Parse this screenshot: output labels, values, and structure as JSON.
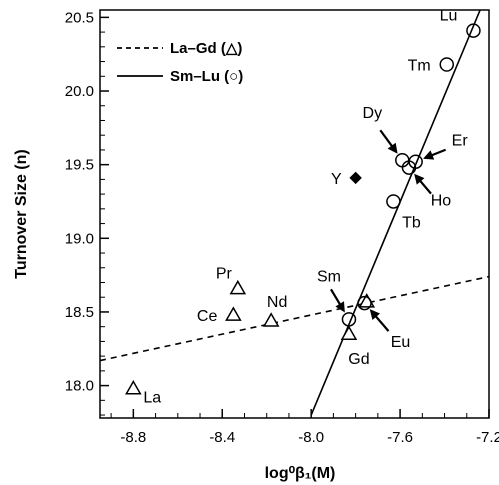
{
  "chart_data": {
    "type": "scatter",
    "xlabel": "log⁰β₁(M)",
    "ylabel": "Turnover Size (n)",
    "xlim": [
      -8.95,
      -7.2
    ],
    "ylim": [
      17.78,
      20.55
    ],
    "xticks": [
      -8.8,
      -8.4,
      -8.0,
      -7.6,
      -7.2
    ],
    "xtick_labels": [
      "-8.8",
      "-8.4",
      "-8.0",
      "-7.6",
      "-7.2"
    ],
    "yticks": [
      18.0,
      18.5,
      19.0,
      19.5,
      20.0,
      20.5
    ],
    "ytick_labels": [
      "18.0",
      "18.5",
      "19.0",
      "19.5",
      "20.0",
      "20.5"
    ],
    "grid": false,
    "legend_position": "top-left",
    "legend": [
      {
        "label": "La–Gd (△)",
        "style": "dashed"
      },
      {
        "label": "Sm–Lu (○)",
        "style": "solid"
      }
    ],
    "series": [
      {
        "marker": "triangle",
        "points": [
          {
            "x": -8.8,
            "y": 17.98,
            "label": "La"
          },
          {
            "x": -8.35,
            "y": 18.48,
            "label": "Ce"
          },
          {
            "x": -8.33,
            "y": 18.66,
            "label": "Pr"
          },
          {
            "x": -8.18,
            "y": 18.44,
            "label": "Nd"
          },
          {
            "x": -7.83,
            "y": 18.35,
            "label": "Gd"
          },
          {
            "x": -7.75,
            "y": 18.57,
            "label": ""
          }
        ]
      },
      {
        "marker": "circle",
        "points": [
          {
            "x": -7.83,
            "y": 18.45,
            "label": "Sm"
          },
          {
            "x": -7.76,
            "y": 18.56,
            "label": "Eu"
          },
          {
            "x": -7.63,
            "y": 19.25,
            "label": "Tb"
          },
          {
            "x": -7.59,
            "y": 19.53,
            "label": "Dy"
          },
          {
            "x": -7.56,
            "y": 19.48,
            "label": "Ho"
          },
          {
            "x": -7.53,
            "y": 19.52,
            "label": "Er"
          },
          {
            "x": -7.39,
            "y": 20.18,
            "label": "Tm"
          },
          {
            "x": -7.27,
            "y": 20.41,
            "label": "Lu"
          }
        ]
      },
      {
        "marker": "diamond",
        "points": [
          {
            "x": -7.8,
            "y": 19.41,
            "label": "Y"
          }
        ]
      }
    ],
    "fits": [
      {
        "style": "dashed",
        "x": [
          -8.95,
          -7.2
        ],
        "y": [
          18.17,
          18.74
        ]
      },
      {
        "style": "solid",
        "x": [
          -8.0,
          -7.24
        ],
        "y": [
          17.8,
          20.55
        ]
      }
    ],
    "annotations": [
      {
        "text": "Sm",
        "arrow": true
      },
      {
        "text": "Eu",
        "arrow": true
      },
      {
        "text": "Dy",
        "arrow": true
      },
      {
        "text": "Er",
        "arrow": true
      },
      {
        "text": "Ho",
        "arrow": true
      }
    ]
  }
}
